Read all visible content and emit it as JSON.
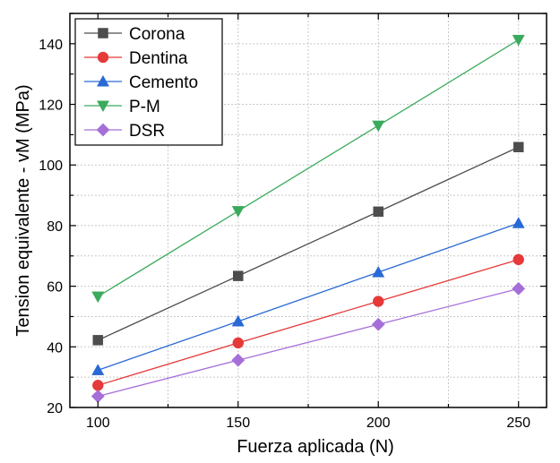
{
  "chart_data": {
    "type": "line",
    "title": "",
    "xlabel": "Fuerza aplicada (N)",
    "ylabel": "Tension equivalente - vM (MPa)",
    "x": [
      100,
      150,
      200,
      250
    ],
    "xlim": [
      90,
      260
    ],
    "ylim": [
      20,
      150
    ],
    "xticks": [
      100,
      150,
      200,
      250
    ],
    "yticks": [
      20,
      40,
      60,
      80,
      100,
      120,
      140
    ],
    "grid": true,
    "legend_position": "top-left",
    "series": [
      {
        "name": "Corona",
        "values": [
          42.2,
          63.4,
          84.6,
          105.9
        ],
        "color": "#4d4d4d",
        "marker": "square"
      },
      {
        "name": "Dentina",
        "values": [
          27.3,
          41.3,
          55.0,
          68.8
        ],
        "color": "#e63939",
        "marker": "circle"
      },
      {
        "name": "Cemento",
        "values": [
          32.3,
          48.4,
          64.6,
          80.8
        ],
        "color": "#2869d6",
        "marker": "triangle-up"
      },
      {
        "name": "P-M",
        "values": [
          56.6,
          84.8,
          113.0,
          141.3
        ],
        "color": "#3aaa5c",
        "marker": "triangle-down"
      },
      {
        "name": "DSR",
        "values": [
          23.7,
          35.6,
          47.4,
          59.2
        ],
        "color": "#a66fd8",
        "marker": "diamond"
      }
    ]
  }
}
